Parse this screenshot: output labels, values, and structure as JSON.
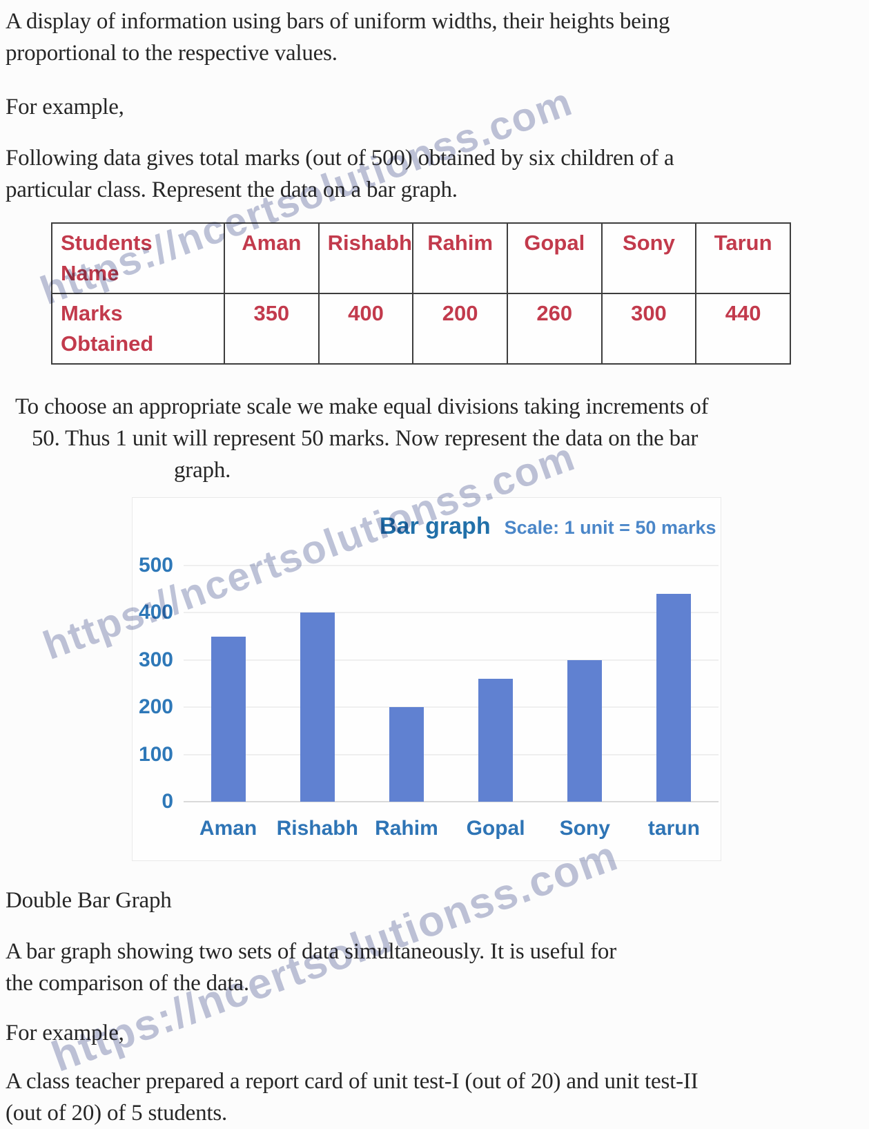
{
  "paragraphs": {
    "intro": [
      "A display of information using bars of uniform widths, their heights being",
      "proportional to the respective values."
    ],
    "for_example_1": "For example,",
    "following_data": [
      "Following data gives total marks (out of 500) obtained by six children of a",
      "particular class. Represent the data on a bar graph."
    ],
    "scale_note": [
      "To choose an appropriate scale we make equal divisions taking increments of",
      "50. Thus 1 unit will represent 50 marks. Now represent the data on the bar",
      "graph."
    ],
    "double_bar_heading": "Double Bar Graph",
    "double_bar_desc": [
      "A bar graph showing two sets of data simultaneously. It is useful for",
      "the comparison of the data."
    ],
    "for_example_2": "For example,",
    "report_card": [
      "A class teacher prepared a report card of unit test-I (out of 20) and unit test-II",
      "(out of 20) of 5 students."
    ]
  },
  "table": {
    "row1_header": "Students Name",
    "row2_header": "Marks Obtained",
    "students": [
      "Aman",
      "Rishabh",
      "Rahim",
      "Gopal",
      "Sony",
      "Tarun"
    ],
    "marks": [
      "350",
      "400",
      "200",
      "260",
      "300",
      "440"
    ],
    "text_color": "#c23a4c"
  },
  "chart_data": {
    "type": "bar",
    "title": "Bar graph",
    "scale_label": "Scale: 1 unit = 50 marks",
    "categories": [
      "Aman",
      "Rishabh",
      "Rahim",
      "Gopal",
      "Sony",
      "tarun"
    ],
    "values": [
      350,
      400,
      200,
      260,
      300,
      440
    ],
    "xlabel": "",
    "ylabel": "",
    "ylim": [
      0,
      500
    ],
    "yticks": [
      500,
      400,
      300,
      200,
      100,
      0
    ],
    "grid": true,
    "legend": false,
    "bar_color": "#6081d1",
    "label_color": "#2e74b5"
  },
  "watermark": {
    "text": "https://ncertsolutionss.com",
    "color": "rgba(125,136,177,0.5)"
  }
}
